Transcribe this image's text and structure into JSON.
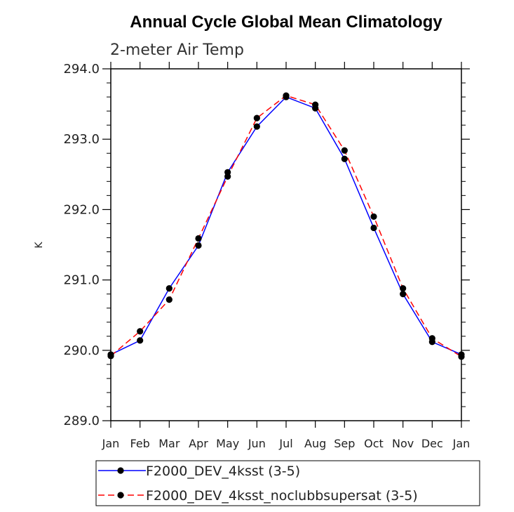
{
  "chart_data": {
    "type": "line",
    "title": "Annual Cycle Global Mean Climatology",
    "subtitle": "2-meter Air Temp",
    "xlabel": "",
    "ylabel": "K",
    "categories": [
      "Jan",
      "Feb",
      "Mar",
      "Apr",
      "May",
      "Jun",
      "Jul",
      "Aug",
      "Sep",
      "Oct",
      "Nov",
      "Dec",
      "Jan"
    ],
    "ylim": [
      289.0,
      294.0
    ],
    "yticks": [
      "289.0",
      "290.0",
      "291.0",
      "292.0",
      "293.0",
      "294.0"
    ],
    "legend_placement": "bottom",
    "grid": false,
    "series": [
      {
        "name": "F2000_DEV_4ksst (3-5)",
        "color": "#0000ff",
        "dash": "solid",
        "marker": "filled-circle",
        "values": [
          289.94,
          290.14,
          290.88,
          291.49,
          292.53,
          293.18,
          293.6,
          293.44,
          292.72,
          291.74,
          290.8,
          290.12,
          289.94
        ]
      },
      {
        "name": "F2000_DEV_4ksst_noclubbsupersat (3-5)",
        "color": "#ff0000",
        "dash": "dashed",
        "marker": "filled-circle",
        "values": [
          289.92,
          290.27,
          290.72,
          291.59,
          292.47,
          293.3,
          293.62,
          293.49,
          292.84,
          291.9,
          290.88,
          290.17,
          289.91
        ]
      }
    ]
  }
}
